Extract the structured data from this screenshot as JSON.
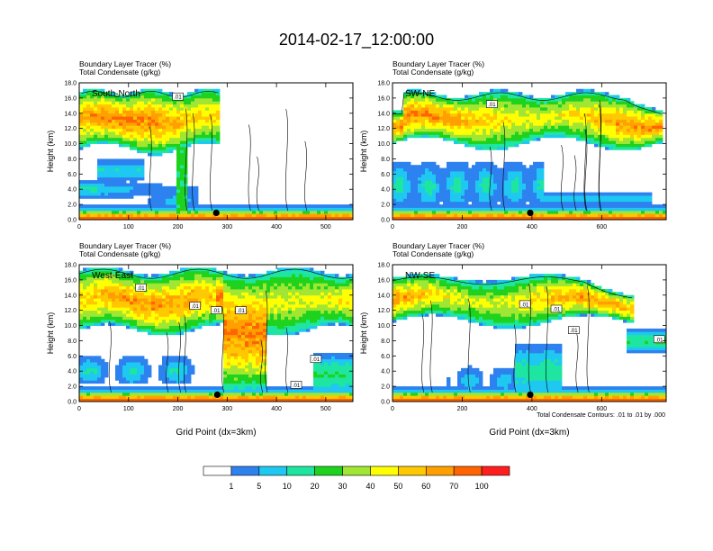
{
  "title": "2014-02-17_12:00:00",
  "colorbar": {
    "colors": [
      "#ffffff",
      "#2d82f0",
      "#1ec8f0",
      "#1ee6a0",
      "#1ed21e",
      "#a0e632",
      "#ffff00",
      "#ffc800",
      "#ffa000",
      "#ff6400",
      "#ff1e1e"
    ],
    "labels": [
      "1",
      "5",
      "10",
      "20",
      "30",
      "40",
      "50",
      "60",
      "70",
      "100"
    ]
  },
  "contour_note": "Total Condensate Contours: .01 to .01 by .000",
  "chart_data": [
    {
      "type": "heatmap",
      "panel": "South-North",
      "subtitle1": "Boundary Layer Tracer   (%)",
      "subtitle2": "Total Condensate   (g/kg)",
      "ylabel": "Height (km)",
      "xlabel": "",
      "xlim": [
        0,
        555
      ],
      "ylim": [
        0,
        18
      ],
      "xticks": [
        "0",
        "100",
        "200",
        "300",
        "400",
        "500"
      ],
      "xtick_values": [
        0,
        100,
        200,
        300,
        400,
        500
      ],
      "yticks": [
        "0.0",
        "2.0",
        "4.0",
        "6.0",
        "8.0",
        "10.0",
        "12.0",
        "14.0",
        "16.0",
        "18.0"
      ],
      "contour_labels": [
        {
          "x": 200,
          "y": 16.2,
          "text": ".01"
        }
      ],
      "marker": {
        "x": 278,
        "y": 0.9
      }
    },
    {
      "type": "heatmap",
      "panel": "SW-NE",
      "subtitle1": "Boundary Layer Tracer   (%)",
      "subtitle2": "Total Condensate   (g/kg)",
      "ylabel": "Height (km)",
      "xlabel": "",
      "xlim": [
        0,
        785
      ],
      "ylim": [
        0,
        18
      ],
      "xticks": [
        "0",
        "200",
        "400",
        "600"
      ],
      "xtick_values": [
        0,
        200,
        400,
        600
      ],
      "yticks": [
        "0.0",
        "2.0",
        "4.0",
        "6.0",
        "8.0",
        "10.0",
        "12.0",
        "14.0",
        "16.0",
        "18.0"
      ],
      "contour_labels": [
        {
          "x": 285,
          "y": 15.2,
          "text": ".01"
        }
      ],
      "marker": {
        "x": 395,
        "y": 0.9
      }
    },
    {
      "type": "heatmap",
      "panel": "West-East",
      "subtitle1": "Boundary Layer Tracer   (%)",
      "subtitle2": "Total Condensate   (g/kg)",
      "ylabel": "Height (km)",
      "xlabel": "Grid Point (dx=3km)",
      "xlim": [
        0,
        555
      ],
      "ylim": [
        0,
        18
      ],
      "xticks": [
        "0",
        "100",
        "200",
        "300",
        "400",
        "500"
      ],
      "xtick_values": [
        0,
        100,
        200,
        300,
        400,
        500
      ],
      "yticks": [
        "0.0",
        "2.0",
        "4.0",
        "6.0",
        "8.0",
        "10.0",
        "12.0",
        "14.0",
        "16.0",
        "18.0"
      ],
      "contour_labels": [
        {
          "x": 125,
          "y": 15.0,
          "text": ".01"
        },
        {
          "x": 235,
          "y": 12.6,
          "text": ".01"
        },
        {
          "x": 278,
          "y": 12.0,
          "text": ".01"
        },
        {
          "x": 328,
          "y": 12.0,
          "text": ".01"
        },
        {
          "x": 440,
          "y": 2.2,
          "text": ".01"
        },
        {
          "x": 480,
          "y": 5.6,
          "text": ".01"
        }
      ],
      "marker": {
        "x": 280,
        "y": 0.9
      }
    },
    {
      "type": "heatmap",
      "panel": "NW-SE",
      "subtitle1": "Boundary Layer Tracer   (%)",
      "subtitle2": "Total Condensate   (g/kg)",
      "ylabel": "Height (km)",
      "xlabel": "Grid Point (dx=3km)",
      "xlim": [
        0,
        785
      ],
      "ylim": [
        0,
        18
      ],
      "xticks": [
        "0",
        "200",
        "400",
        "600"
      ],
      "xtick_values": [
        0,
        200,
        400,
        600
      ],
      "yticks": [
        "0.0",
        "2.0",
        "4.0",
        "6.0",
        "8.0",
        "10.0",
        "12.0",
        "14.0",
        "16.0",
        "18.0"
      ],
      "contour_labels": [
        {
          "x": 380,
          "y": 12.8,
          "text": ".01"
        },
        {
          "x": 470,
          "y": 12.2,
          "text": ".01"
        },
        {
          "x": 520,
          "y": 9.4,
          "text": ".01"
        },
        {
          "x": 765,
          "y": 8.2,
          "text": ".01"
        }
      ],
      "marker": {
        "x": 395,
        "y": 0.9
      }
    }
  ]
}
